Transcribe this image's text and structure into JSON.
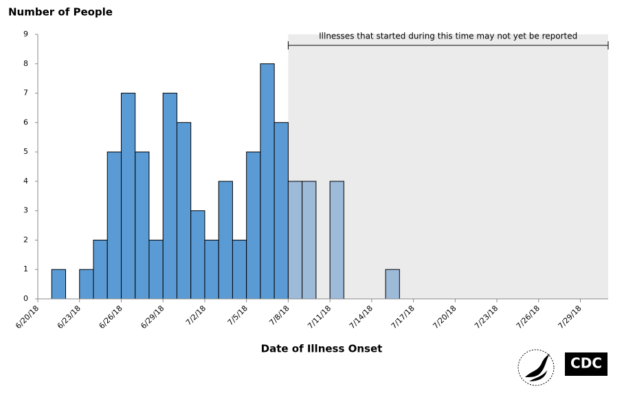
{
  "chart_data": {
    "type": "bar",
    "title": "Number of People",
    "x_label": "Date of Illness Onset",
    "x": [
      "6/21/18",
      "6/23/18",
      "6/24/18",
      "6/25/18",
      "6/26/18",
      "6/27/18",
      "6/28/18",
      "6/29/18",
      "6/30/18",
      "7/1/18",
      "7/2/18",
      "7/3/18",
      "7/4/18",
      "7/5/18",
      "7/6/18",
      "7/7/18",
      "7/8/18",
      "7/9/18",
      "7/11/18",
      "7/15/18"
    ],
    "values": [
      1,
      1,
      2,
      5,
      7,
      5,
      2,
      7,
      6,
      3,
      2,
      4,
      2,
      5,
      8,
      6,
      4,
      4,
      4,
      1
    ],
    "color": "#5b9bd5",
    "recent_color": "#9dbad9",
    "shade_color": "#ebebeb",
    "xlim": [
      "6/20/18",
      "7/31/18"
    ],
    "xticks": [
      "6/20/18",
      "6/23/18",
      "6/26/18",
      "6/29/18",
      "7/2/18",
      "7/5/18",
      "7/8/18",
      "7/11/18",
      "7/14/18",
      "7/17/18",
      "7/20/18",
      "7/23/18",
      "7/26/18",
      "7/29/18"
    ],
    "ylim": [
      0,
      9
    ],
    "yticks": [
      0,
      1,
      2,
      3,
      4,
      5,
      6,
      7,
      8,
      9
    ],
    "annotation": {
      "text": "Illnesses that started during this time may not yet be reported",
      "start": "7/8/18"
    },
    "logo_text": "CDC"
  }
}
